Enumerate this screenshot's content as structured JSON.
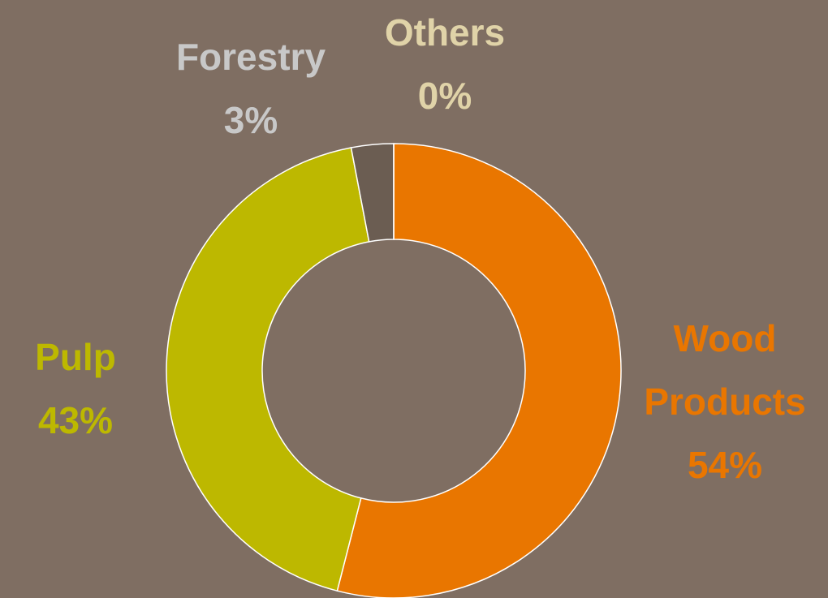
{
  "chart_data": {
    "type": "donut",
    "categories": [
      "Wood Products",
      "Pulp",
      "Forestry",
      "Others"
    ],
    "values": [
      54,
      43,
      3,
      0
    ],
    "value_labels": [
      "54%",
      "43%",
      "3%",
      "0%"
    ],
    "colors": [
      "#e97600",
      "#bdb800",
      "#6b5d52",
      "#e0d3a8"
    ],
    "label_colors": [
      "#e97600",
      "#bdb800",
      "#c8c8c8",
      "#e0d3a8"
    ]
  }
}
